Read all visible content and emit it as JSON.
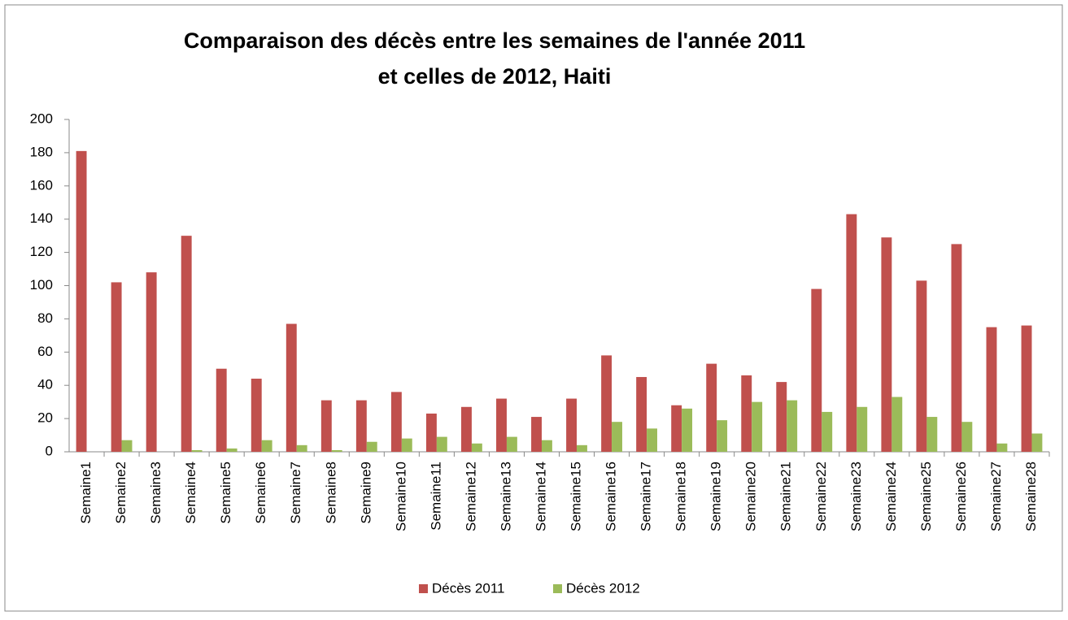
{
  "chart_data": {
    "type": "bar",
    "title": [
      "Comparaison des décès entre les semaines de l'année 2011",
      "et celles de 2012, Haiti"
    ],
    "categories": [
      "Semaine1",
      "Semaine2",
      "Semaine3",
      "Semaine4",
      "Semaine5",
      "Semaine6",
      "Semaine7",
      "Semaine8",
      "Semaine9",
      "Semaine10",
      "Semaine11",
      "Semaine12",
      "Semaine13",
      "Semaine14",
      "Semaine15",
      "Semaine16",
      "Semaine17",
      "Semaine18",
      "Semaine19",
      "Semaine20",
      "Semaine21",
      "Semaine22",
      "Semaine23",
      "Semaine24",
      "Semaine25",
      "Semaine26",
      "Semaine27",
      "Semaine28"
    ],
    "series": [
      {
        "name": "Décès 2011",
        "color": "#c0504d",
        "values": [
          181,
          102,
          108,
          130,
          50,
          44,
          77,
          31,
          31,
          36,
          23,
          27,
          32,
          21,
          32,
          58,
          45,
          28,
          53,
          46,
          42,
          98,
          143,
          129,
          103,
          125,
          75,
          76
        ]
      },
      {
        "name": "Décès 2012",
        "color": "#9bbb59",
        "values": [
          0,
          7,
          0,
          1,
          2,
          7,
          4,
          1,
          6,
          8,
          9,
          5,
          9,
          7,
          4,
          18,
          14,
          26,
          19,
          30,
          31,
          24,
          27,
          33,
          21,
          18,
          5,
          11
        ]
      }
    ],
    "ylim": [
      0,
      200
    ],
    "yticks": [
      0,
      20,
      40,
      60,
      80,
      100,
      120,
      140,
      160,
      180,
      200
    ],
    "legend": "bottom"
  }
}
